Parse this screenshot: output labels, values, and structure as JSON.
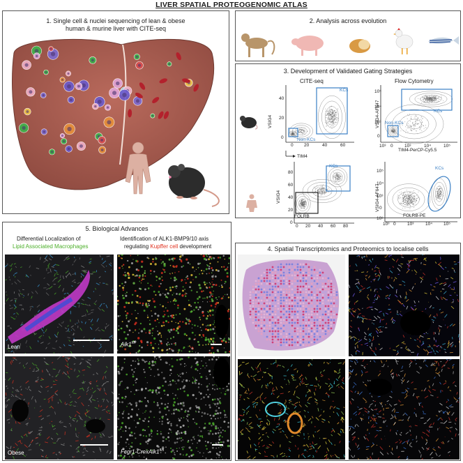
{
  "title": "LIVER SPATIAL PROTEOGENOMIC ATLAS",
  "panel1": {
    "title_line1": "1. Single cell & nuclei sequencing of lean & obese",
    "title_line2": "human & murine liver with CITE-seq"
  },
  "panel2": {
    "title": "2. Analysis across evolution"
  },
  "panel3": {
    "title": "3. Development of Validated Gating Strategies",
    "cite_seq": "CITE-seq",
    "flow": "Flow Cytometry",
    "mouse": {
      "cite_y": "VSIG4",
      "cite_x": "TIM4",
      "cite_kcs": "KCs",
      "cite_nonkcs": "Non-KCs",
      "cite_xticks": [
        "0",
        "20",
        "40",
        "60"
      ],
      "cite_yticks": [
        "0",
        "20",
        "40"
      ],
      "flow_y": "VSIG4-AF647",
      "flow_x": "TIM4-PerCP-Cy5.5",
      "flow_kcs": "KCs",
      "flow_nonkcs": "Non-KCs",
      "flow_xticks": [
        "10³",
        "0",
        "10³",
        "10⁴",
        "10⁵"
      ],
      "flow_yticks": [
        "0",
        "10³",
        "10⁴",
        "10⁵"
      ]
    },
    "human": {
      "cite_y": "VSIG4",
      "cite_x": "FOLRB",
      "cite_kcs": "KCs",
      "cite_xticks": [
        "0",
        "20",
        "40",
        "60",
        "80"
      ],
      "cite_yticks": [
        "0",
        "20",
        "40",
        "60",
        "80"
      ],
      "flow_y": "VSIG4-AF647",
      "flow_x": "FOLRB-PE",
      "flow_kcs": "KCs",
      "flow_xticks": [
        "10³",
        "0",
        "10³",
        "10⁴",
        "10⁵"
      ],
      "flow_yticks": [
        "10³",
        "0",
        "10³",
        "10⁴",
        "10⁵"
      ]
    }
  },
  "panel4": {
    "title": "4. Spatial Transcriptomics and Proteomics to localise cells"
  },
  "panel5": {
    "title": "5. Biological Advances",
    "left_line1": "Differential Localization of",
    "left_line2": "Lipid Associated Macrophages",
    "right_line1": "Identification of ALK1-BMP9/10 axis",
    "right_line2a": "regulating ",
    "right_line2b": "Kupffer cell",
    "right_line2c": " development",
    "lean": "Lean",
    "obese": "Obese",
    "alk1_label": "Alk1",
    "alk1_sup": "f/fl",
    "fcgr_label": "Fcgr1-CrexAlk1",
    "fcgr_sup": "fl/fl"
  },
  "colors": {
    "lam_green": "#4caf2a",
    "kupffer_red": "#e0301e",
    "gate_blue": "#3a7fc4",
    "liver": "#a65a4e"
  }
}
